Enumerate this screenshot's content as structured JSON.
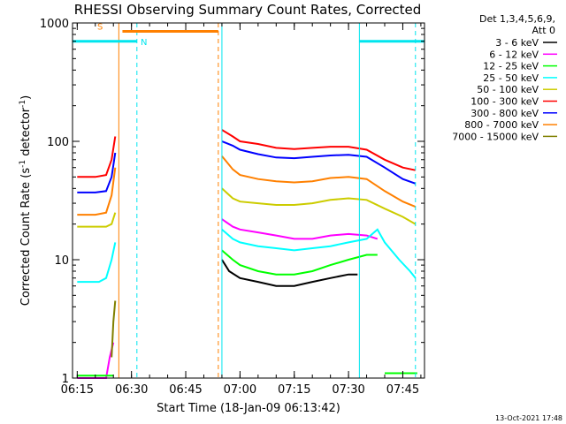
{
  "chart_data": {
    "type": "line",
    "title": "RHESSI Observing Summary Count Rates, Corrected",
    "xlabel": "Start Time (18-Jan-09 06:13:42)",
    "ylabel_parts": {
      "pre": "Corrected Count Rate (s",
      "exp1": "-1",
      "mid": " detector",
      "exp2": "-1",
      "post": ")"
    },
    "yscale": "log",
    "ylim": [
      1,
      1000
    ],
    "xlim": [
      "06:13:42",
      "07:51:00"
    ],
    "xticks": [
      "06:15",
      "06:30",
      "06:45",
      "07:00",
      "07:15",
      "07:30",
      "07:45"
    ],
    "yticks": [
      "1",
      "10",
      "100",
      "1000"
    ],
    "grid": false,
    "legend_position": "right",
    "legend_header": [
      "Det 1,3,4,5,6,9,",
      "Att 0"
    ],
    "footer_date": "13-Oct-2021 17:48",
    "flag_labels": {
      "saa": "S",
      "night": "N"
    },
    "flags": [
      {
        "label": "S",
        "color": "#ff8000",
        "from": "06:27:30",
        "to": "06:54:00",
        "level": 850
      },
      {
        "label": "N",
        "color": "#00e5ee",
        "from": "06:13:42",
        "to": "06:31:30",
        "level": 700
      },
      {
        "label": "N",
        "color": "#00e5ee",
        "from": "07:33:00",
        "to": "07:51:00",
        "level": 700
      }
    ],
    "vlines": [
      {
        "time": "06:26:30",
        "color": "#ff8000",
        "style": "solid"
      },
      {
        "time": "06:54:00",
        "color": "#ff8000",
        "style": "dashed"
      },
      {
        "time": "06:31:30",
        "color": "#00e5ee",
        "style": "dashed"
      },
      {
        "time": "06:55:00",
        "color": "#00e5ee",
        "style": "solid"
      },
      {
        "time": "07:33:00",
        "color": "#00e5ee",
        "style": "solid"
      },
      {
        "time": "07:48:30",
        "color": "#00e5ee",
        "style": "dashed"
      }
    ],
    "series": [
      {
        "name": "3 - 6 keV",
        "color": "#000000",
        "segments": [
          {
            "x": [
              "06:55:00",
              "06:57:00",
              "07:00:00",
              "07:05:00",
              "07:10:00",
              "07:15:00",
              "07:20:00",
              "07:25:00",
              "07:30:00",
              "07:32:30"
            ],
            "y": [
              10,
              8,
              7,
              6.5,
              6,
              6,
              6.5,
              7,
              7.5,
              7.5
            ]
          }
        ]
      },
      {
        "name": "6 - 12 keV",
        "color": "#ff00ff",
        "segments": [
          {
            "x": [
              "06:15:00",
              "06:20:00",
              "06:23:00",
              "06:24:00",
              "06:25:00"
            ],
            "y": [
              1,
              1,
              1,
              1.5,
              2
            ]
          },
          {
            "x": [
              "06:55:00",
              "06:58:00",
              "07:00:00",
              "07:05:00",
              "07:10:00",
              "07:15:00",
              "07:20:00",
              "07:25:00",
              "07:30:00",
              "07:35:00",
              "07:38:00"
            ],
            "y": [
              22,
              19,
              18,
              17,
              16,
              15,
              15,
              16,
              16.5,
              16,
              15
            ]
          }
        ]
      },
      {
        "name": "12 - 25 keV",
        "color": "#00ff00",
        "segments": [
          {
            "x": [
              "06:15:00",
              "06:25:00"
            ],
            "y": [
              1.05,
              1.05
            ]
          },
          {
            "x": [
              "06:55:00",
              "06:58:00",
              "07:00:00",
              "07:05:00",
              "07:10:00",
              "07:15:00",
              "07:20:00",
              "07:25:00",
              "07:30:00",
              "07:35:00",
              "07:38:00"
            ],
            "y": [
              12,
              10,
              9,
              8,
              7.5,
              7.5,
              8,
              9,
              10,
              11,
              11
            ]
          },
          {
            "x": [
              "07:40:00",
              "07:45:00",
              "07:49:00"
            ],
            "y": [
              1.1,
              1.1,
              1.1
            ]
          }
        ]
      },
      {
        "name": "25 - 50 keV",
        "color": "#00ffff",
        "segments": [
          {
            "x": [
              "06:15:00",
              "06:18:00",
              "06:21:00",
              "06:23:00",
              "06:24:30",
              "06:25:30"
            ],
            "y": [
              6.5,
              6.5,
              6.5,
              7,
              10,
              14
            ]
          },
          {
            "x": [
              "06:55:00",
              "06:58:00",
              "07:00:00",
              "07:05:00",
              "07:10:00",
              "07:15:00",
              "07:20:00",
              "07:25:00",
              "07:30:00",
              "07:35:00",
              "07:38:00",
              "07:40:00",
              "07:44:00",
              "07:47:00",
              "07:48:30"
            ],
            "y": [
              18,
              15,
              14,
              13,
              12.5,
              12,
              12.5,
              13,
              14,
              15,
              18,
              14,
              10,
              8,
              7
            ]
          }
        ]
      },
      {
        "name": "50 - 100 keV",
        "color": "#cccc00",
        "segments": [
          {
            "x": [
              "06:15:00",
              "06:20:00",
              "06:23:00",
              "06:24:30",
              "06:25:30"
            ],
            "y": [
              19,
              19,
              19,
              20,
              25
            ]
          },
          {
            "x": [
              "06:55:00",
              "06:58:00",
              "07:00:00",
              "07:05:00",
              "07:10:00",
              "07:15:00",
              "07:20:00",
              "07:25:00",
              "07:30:00",
              "07:35:00",
              "07:40:00",
              "07:45:00",
              "07:48:30"
            ],
            "y": [
              40,
              33,
              31,
              30,
              29,
              29,
              30,
              32,
              33,
              32,
              27,
              23,
              20
            ]
          }
        ]
      },
      {
        "name": "100 - 300 keV",
        "color": "#ff0000",
        "segments": [
          {
            "x": [
              "06:15:00",
              "06:20:00",
              "06:23:00",
              "06:24:30",
              "06:25:30"
            ],
            "y": [
              50,
              50,
              52,
              70,
              110
            ]
          },
          {
            "x": [
              "06:55:00",
              "06:58:00",
              "07:00:00",
              "07:05:00",
              "07:10:00",
              "07:15:00",
              "07:20:00",
              "07:25:00",
              "07:30:00",
              "07:35:00",
              "07:40:00",
              "07:45:00",
              "07:48:30"
            ],
            "y": [
              125,
              110,
              100,
              95,
              88,
              86,
              88,
              90,
              90,
              85,
              70,
              60,
              57
            ]
          }
        ]
      },
      {
        "name": "300 - 800 keV",
        "color": "#0000ff",
        "segments": [
          {
            "x": [
              "06:15:00",
              "06:20:00",
              "06:23:00",
              "06:24:30",
              "06:25:30"
            ],
            "y": [
              37,
              37,
              38,
              50,
              80
            ]
          },
          {
            "x": [
              "06:55:00",
              "06:58:00",
              "07:00:00",
              "07:05:00",
              "07:10:00",
              "07:15:00",
              "07:20:00",
              "07:25:00",
              "07:30:00",
              "07:35:00",
              "07:40:00",
              "07:45:00",
              "07:48:30"
            ],
            "y": [
              100,
              92,
              85,
              78,
              73,
              72,
              74,
              76,
              77,
              74,
              60,
              48,
              44
            ]
          }
        ]
      },
      {
        "name": "800 - 7000 keV",
        "color": "#ff8000",
        "segments": [
          {
            "x": [
              "06:15:00",
              "06:20:00",
              "06:23:00",
              "06:24:30",
              "06:25:30"
            ],
            "y": [
              24,
              24,
              25,
              35,
              60
            ]
          },
          {
            "x": [
              "06:55:00",
              "06:58:00",
              "07:00:00",
              "07:05:00",
              "07:10:00",
              "07:15:00",
              "07:20:00",
              "07:25:00",
              "07:30:00",
              "07:35:00",
              "07:40:00",
              "07:45:00",
              "07:48:30"
            ],
            "y": [
              75,
              58,
              52,
              48,
              46,
              45,
              46,
              49,
              50,
              48,
              38,
              31,
              28
            ]
          }
        ]
      },
      {
        "name": "7000 - 15000 keV",
        "color": "#808000",
        "segments": [
          {
            "x": [
              "06:24:30",
              "06:25:00",
              "06:25:30"
            ],
            "y": [
              1.5,
              3,
              4.5
            ]
          }
        ]
      }
    ]
  }
}
